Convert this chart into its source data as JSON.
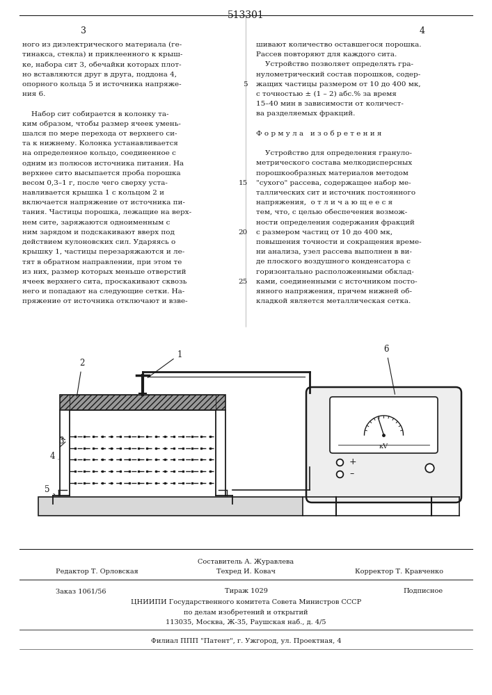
{
  "patent_number": "513301",
  "page_left": "3",
  "page_right": "4",
  "bg_color": "#ffffff",
  "text_color": "#1a1a1a",
  "col1_text": [
    "ного из диэлектрического материала (ге-",
    "тинакса, стекла) и приклеенного к крыш-",
    "ке, набора сит 3, обечайки которых плот-",
    "но вставляются друг в друга, поддона 4,",
    "опорного кольца 5 и источника напряже-",
    "ния 6.",
    "",
    "    Набор сит собирается в колонку та-",
    "ким образом, чтобы размер ячеек умень-",
    "шался по мере перехода от верхнего си-",
    "та к нижнему. Колонка устанавливается",
    "на определенное кольцо, соединенное с",
    "одним из полюсов источника питания. На",
    "верхнее сито высыпается проба порошка",
    "весом 0,3–1 г, после чего сверху уста-",
    "навливается крышка 1 с кольцом 2 и",
    "включается напряжение от источника пи-",
    "тания. Частицы порошка, лежащие на верх-",
    "нем сите, заряжаются одноименным с",
    "ним зарядом и подскакивают вверх под",
    "действием кулоновских сил. Ударяясь о",
    "крышку 1, частицы перезаряжаются и ле-",
    "тят в обратном направлении, при этом те",
    "из них, размер которых меньше отверстий",
    "ячеек верхнего сита, проскакивают сквозь",
    "него и попадают на следующие сетки. На-",
    "пряжение от источника отключают и взве-"
  ],
  "col2_text": [
    "шивают количество оставшегося порошка.",
    "Рассев повторяют для каждого сита.",
    "    Устройство позволяет определять гра-",
    "нулометрический состав порошков, содер-",
    "жащих частицы размером от 10 до 400 мк,",
    "с точностью ± (1 – 2) абс.% за время",
    "15–40 мин в зависимости от количест-",
    "ва разделяемых фракций.",
    "",
    "Ф о р м у л а   и з о б р е т е н и я",
    "",
    "    Устройство для определения грануло-",
    "метрического состава мелкодисперсных",
    "порошкообразных материалов методом",
    "\"сухого\" рассева, содержащее набор ме-",
    "таллических сит и источник постоянного",
    "напряжения,  о т л и ч а ю щ е е с я",
    "тем, что, с целью обеспечения возмож-",
    "ности определения содержания фракций",
    "с размером частиц от 10 до 400 мк,",
    "повышения точности и сокращения време-",
    "ни анализа, узел рассева выполнен в ви-",
    "де плоского воздушного конденсатора с",
    "горизонтально расположенными обклад-",
    "ками, соединенными с источником посто-",
    "янного напряжения, причем нижней об-",
    "кладкой является металлическая сетка."
  ],
  "line_numbers": {
    "4": "5",
    "14": "15",
    "19": "20",
    "24": "25"
  },
  "footer_compiler": "Составитель А. Журавлева",
  "footer_editor": "Редактор Т. Орловская",
  "footer_tech": "Техред И. Ковач",
  "footer_corrector": "Корректор Т. Кравченко",
  "footer_order": "Заказ 1061/56",
  "footer_print": "Тираж 1029",
  "footer_sign": "Подписное",
  "footer_org": "ЦНИИПИ Государственного комитета Совета Министров СССР",
  "footer_dept": "по делам изобретений и открытий",
  "footer_addr": "113035, Москва, Ж-35, Раушская наб., д. 4/5",
  "footer_branch": "Филиал ППП \"Патент\", г. Ужгород, ул. Проектная, 4"
}
